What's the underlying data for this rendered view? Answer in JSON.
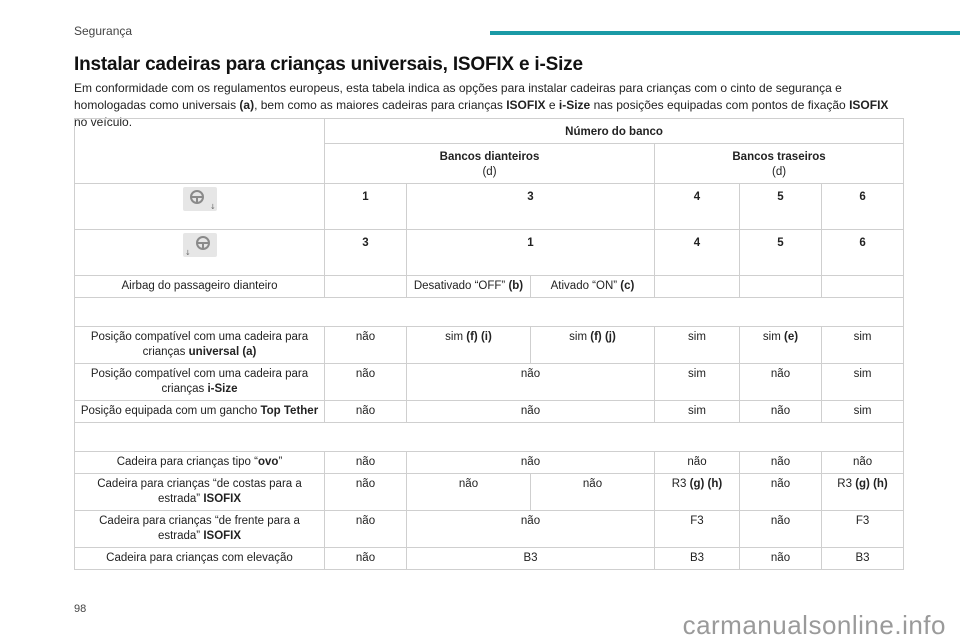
{
  "header": {
    "section": "Segurança",
    "accent_color": "#1a9aa6"
  },
  "title": "Instalar cadeiras para crianças universais, ISOFIX e i-Size",
  "intro": {
    "p1": "Em conformidade com os regulamentos europeus, esta tabela indica as opções para instalar cadeiras para crianças com o cinto de segurança e homologadas como universais ",
    "p1b": "(a)",
    "p2": ", bem como as maiores cadeiras para crianças ",
    "p2b": "ISOFIX",
    "p3": " e ",
    "p3b": "i-Size",
    "p4": " nas posições equipadas com pontos de fixação ",
    "p4b": "ISOFIX",
    "p5": " no veículo."
  },
  "table": {
    "seat_number": "Número do banco",
    "front_seats": "Bancos dianteiros",
    "front_ref": "(d)",
    "rear_seats": "Bancos traseiros",
    "rear_ref": "(d)",
    "row_lhd": {
      "icon": "steering-wheel-left-icon",
      "cells": [
        "1",
        "3",
        "4",
        "5",
        "6"
      ]
    },
    "row_rhd": {
      "icon": "steering-wheel-right-icon",
      "cells": [
        "3",
        "1",
        "4",
        "5",
        "6"
      ]
    },
    "airbag": {
      "label": "Airbag do passageiro dianteiro",
      "off": "Desativado “OFF” ",
      "off_ref": "(b)",
      "on": "Ativado “ON” ",
      "on_ref": "(c)"
    },
    "universal": {
      "label": "Posição compatível com uma cadeira para crianças ",
      "label_b": "universal (a)",
      "c1": "não",
      "c2": "sim ",
      "c2b": "(f) (i)",
      "c3": "sim ",
      "c3b": "(f) (j)",
      "c4": "sim",
      "c5": "sim ",
      "c5b": "(e)",
      "c6": "sim"
    },
    "isize": {
      "label": "Posição compatível com uma cadeira para crianças ",
      "label_b": "i-Size",
      "cells": [
        "não",
        "não",
        "sim",
        "não",
        "sim"
      ]
    },
    "tether": {
      "label": "Posição equipada com um gancho ",
      "label_b": "Top Tether",
      "cells": [
        "não",
        "não",
        "sim",
        "não",
        "sim"
      ]
    },
    "ovo": {
      "label": "Cadeira para crianças tipo “",
      "label_b": "ovo",
      "label_c": "”",
      "cells": [
        "não",
        "não",
        "não",
        "não",
        "não"
      ]
    },
    "rearward": {
      "label": "Cadeira para crianças “de costas para a estrada” ",
      "label_b": "ISOFIX",
      "c1": "não",
      "c2": "não",
      "c3": "não",
      "c4": "R3 ",
      "c4b": "(g) (h)",
      "c5": "não",
      "c6": "R3 ",
      "c6b": "(g) (h)"
    },
    "forward": {
      "label": "Cadeira para crianças “de frente para a estrada” ",
      "label_b": "ISOFIX",
      "cells": [
        "não",
        "não",
        "F3",
        "não",
        "F3"
      ]
    },
    "booster": {
      "label": "Cadeira para crianças com elevação",
      "cells": [
        "não",
        "B3",
        "B3",
        "não",
        "B3"
      ]
    }
  },
  "footer": {
    "page_number": "98",
    "watermark": "carmanualsonline.info"
  }
}
